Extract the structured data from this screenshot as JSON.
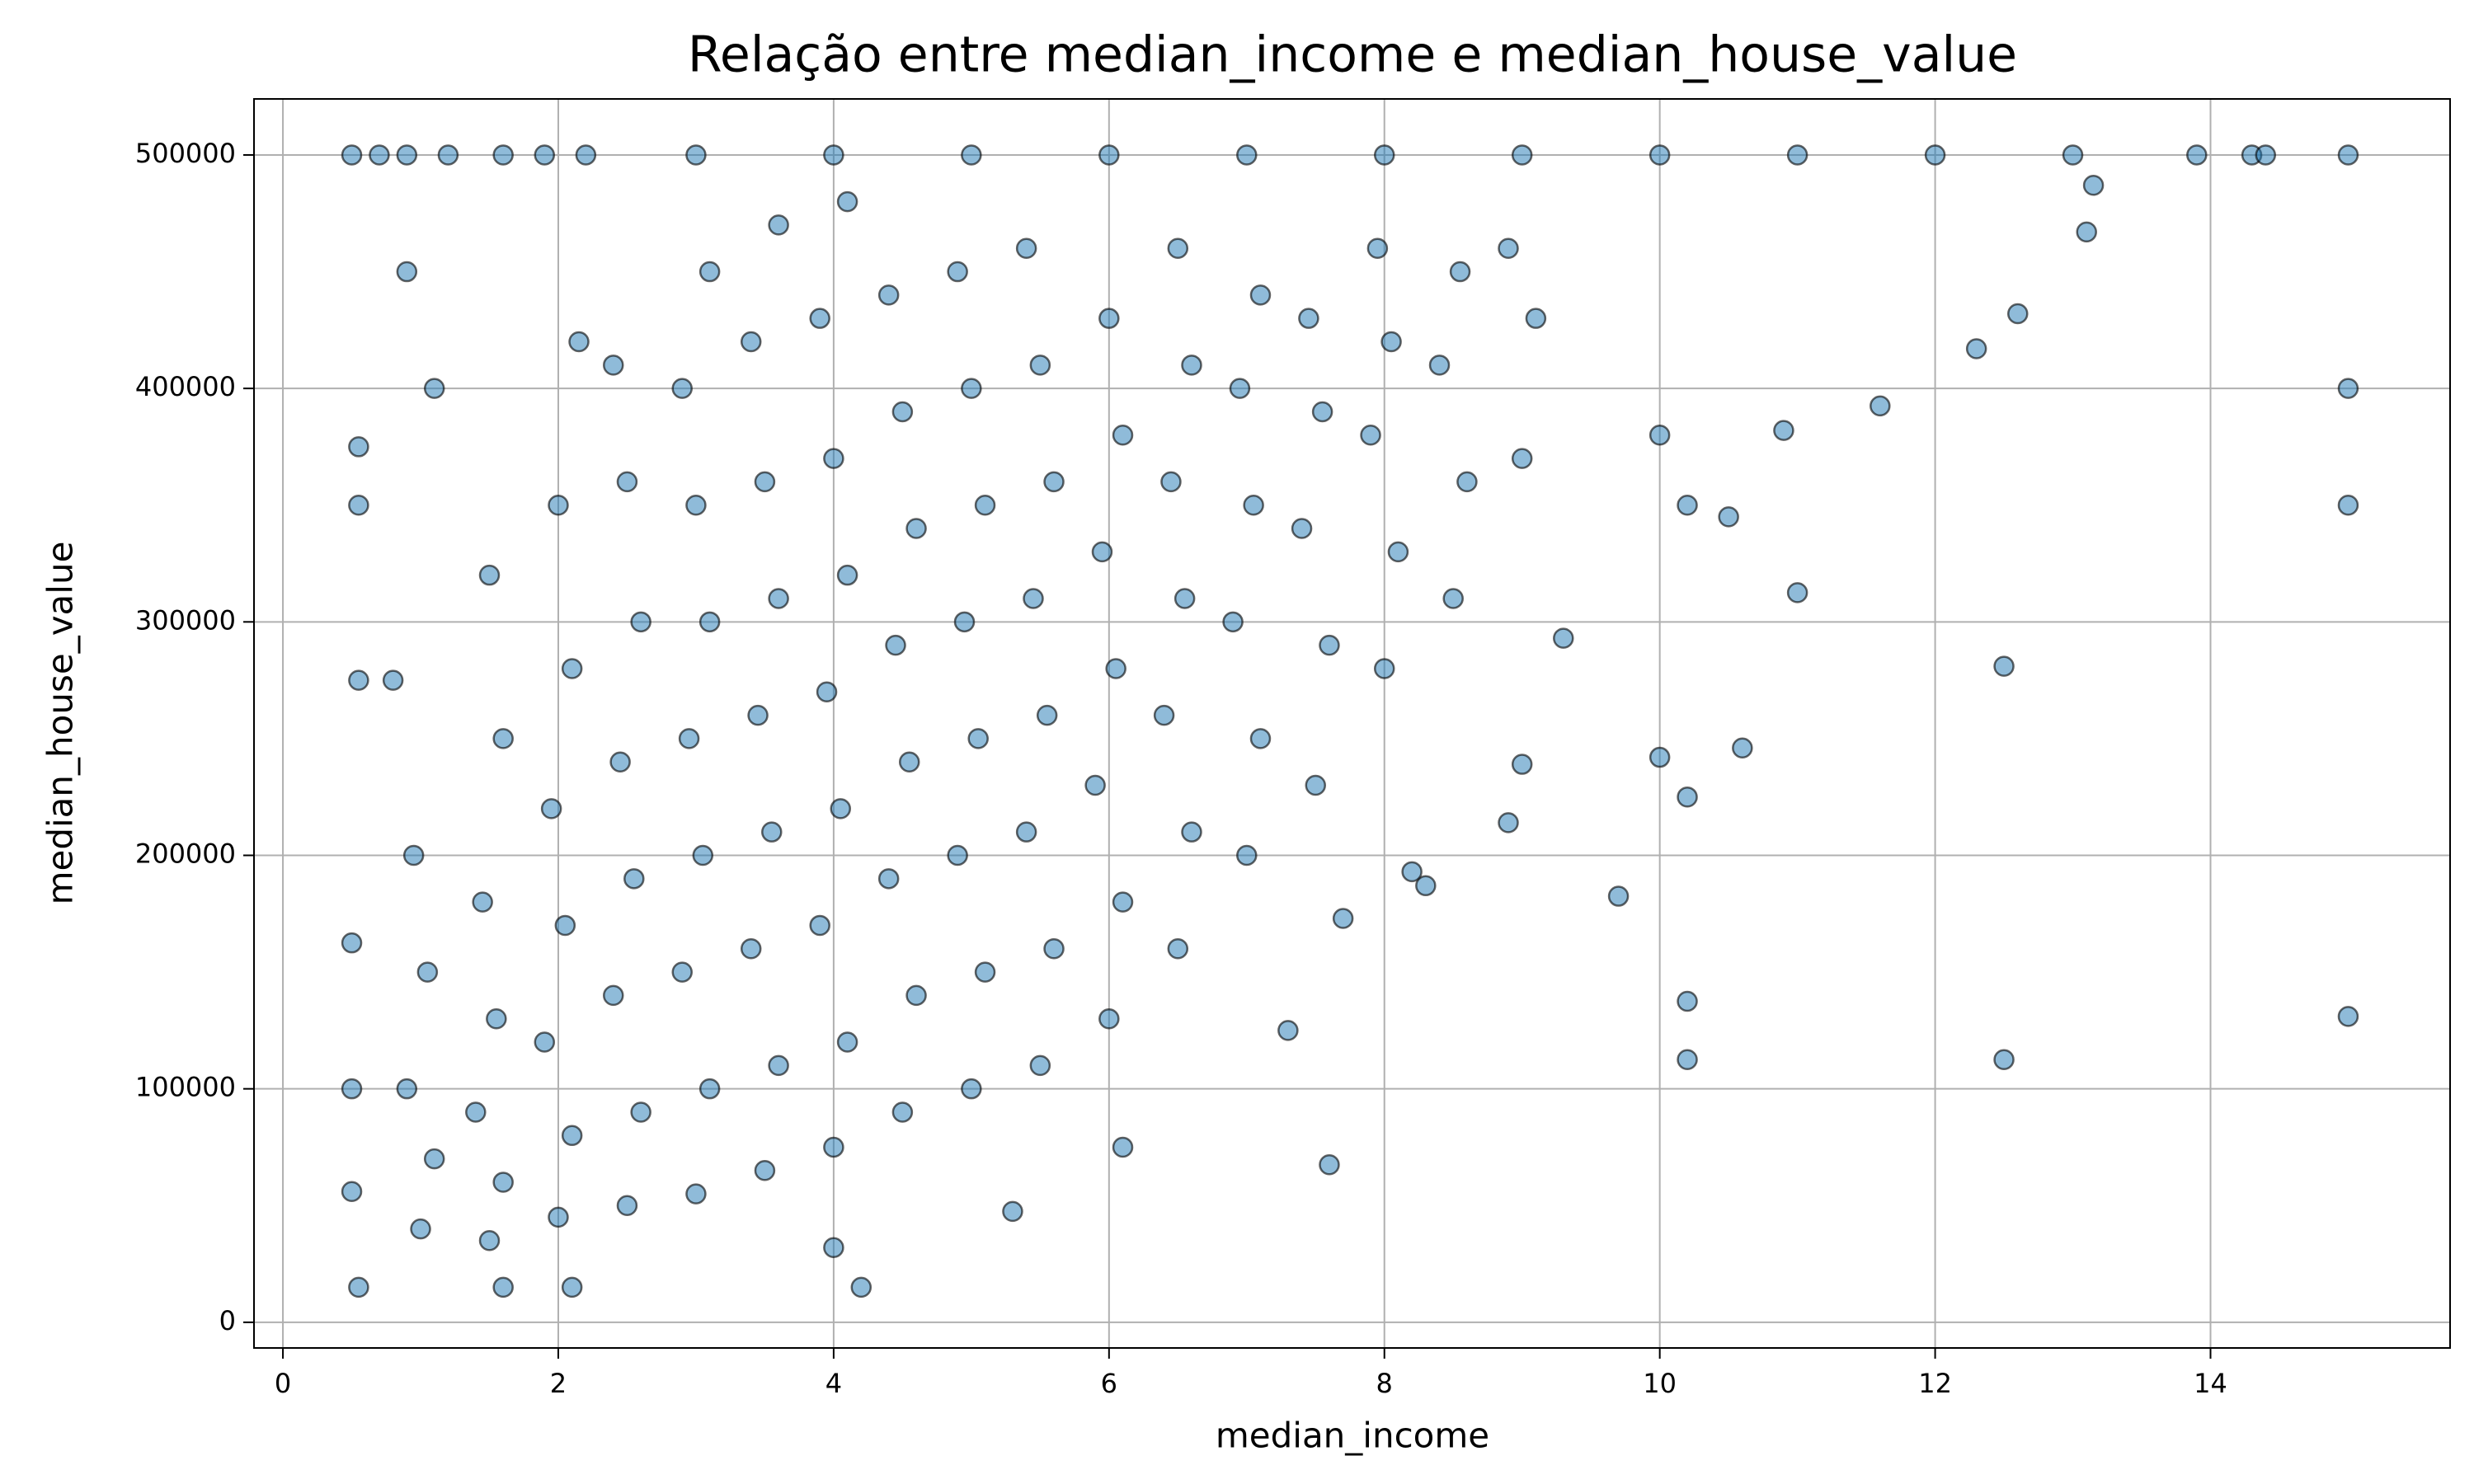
{
  "chart_data": {
    "type": "scatter",
    "title": "Relação entre median_income e median_house_value",
    "x_label": "median_income",
    "y_label": "median_house_value",
    "color": "#1f77b4",
    "grid": true,
    "xlim": [
      -0.21,
      15.74
    ],
    "ylim": [
      -11000,
      524000
    ],
    "xticks": [
      0,
      2,
      4,
      6,
      8,
      10,
      12,
      14
    ],
    "yticks": [
      0,
      100000,
      200000,
      300000,
      400000,
      500000
    ],
    "x": [
      1.0,
      1.1,
      0.9,
      1.05,
      0.95,
      1.5,
      1.6,
      1.4,
      1.55,
      1.45,
      1.6,
      1.5,
      2.0,
      2.1,
      1.9,
      2.05,
      1.95,
      2.1,
      2.0,
      2.15,
      2.5,
      2.6,
      2.4,
      2.55,
      2.45,
      2.6,
      2.5,
      2.4,
      3.0,
      3.1,
      2.9,
      3.05,
      2.95,
      3.1,
      3.0,
      2.9,
      3.1,
      3.5,
      3.6,
      3.4,
      3.55,
      3.45,
      3.6,
      3.5,
      3.4,
      3.6,
      4.0,
      4.1,
      3.9,
      4.05,
      3.95,
      4.1,
      4.0,
      3.9,
      4.1,
      4.5,
      4.6,
      4.4,
      4.55,
      4.45,
      4.6,
      4.5,
      4.4,
      5.0,
      5.1,
      4.9,
      5.05,
      4.95,
      5.1,
      5.0,
      4.9,
      5.5,
      5.6,
      5.4,
      5.55,
      5.45,
      5.6,
      5.5,
      5.4,
      6.0,
      6.1,
      5.9,
      6.05,
      5.95,
      6.1,
      6.0,
      6.5,
      6.6,
      6.4,
      6.55,
      6.45,
      6.6,
      6.5,
      7.0,
      7.1,
      6.9,
      7.05,
      6.95,
      7.1,
      7.5,
      7.6,
      7.4,
      7.55,
      7.45,
      8.0,
      8.1,
      7.9,
      8.05,
      7.95,
      8.5,
      8.6,
      8.4,
      8.55,
      9.0,
      9.1,
      8.9,
      15,
      15,
      15,
      12.5,
      12.5,
      10.2,
      10.2,
      10.2,
      9.7,
      10,
      10.6,
      11,
      11.6,
      12.3,
      12.6,
      13.1,
      13.15,
      10.9,
      10,
      10.2,
      10.5,
      9.3,
      8.9,
      9,
      8.3,
      8.2,
      7.6,
      7.3,
      7.7,
      6.1,
      5.3,
      4.2,
      1.6,
      0.55,
      2.1,
      4,
      0.9,
      0.5,
      0.55,
      0.55,
      0.55,
      1.1,
      0.8,
      0.5,
      0.5,
      0.5,
      0.7,
      0.9,
      1.2,
      1.6,
      1.9,
      2.2,
      3,
      4,
      5,
      6,
      7,
      8,
      9,
      10,
      11,
      12,
      13,
      13.9,
      14.3,
      14.4,
      15
    ],
    "values": [
      40000,
      70000,
      100000,
      150000,
      200000,
      35000,
      60000,
      90000,
      130000,
      180000,
      250000,
      320000,
      45000,
      80000,
      120000,
      170000,
      220000,
      280000,
      350000,
      420000,
      50000,
      90000,
      140000,
      190000,
      240000,
      300000,
      360000,
      410000,
      55000,
      100000,
      150000,
      200000,
      250000,
      300000,
      350000,
      400000,
      450000,
      65000,
      110000,
      160000,
      210000,
      260000,
      310000,
      360000,
      420000,
      470000,
      75000,
      120000,
      170000,
      220000,
      270000,
      320000,
      370000,
      430000,
      480000,
      90000,
      140000,
      190000,
      240000,
      290000,
      340000,
      390000,
      440000,
      100000,
      150000,
      200000,
      250000,
      300000,
      350000,
      400000,
      450000,
      110000,
      160000,
      210000,
      260000,
      310000,
      360000,
      410000,
      460000,
      130000,
      180000,
      230000,
      280000,
      330000,
      380000,
      430000,
      160000,
      210000,
      260000,
      310000,
      360000,
      410000,
      460000,
      200000,
      250000,
      300000,
      350000,
      400000,
      440000,
      230000,
      290000,
      340000,
      390000,
      430000,
      280000,
      330000,
      380000,
      420000,
      460000,
      310000,
      360000,
      410000,
      450000,
      370000,
      430000,
      460000,
      400000,
      350000,
      131000,
      112500,
      281000,
      112500,
      137500,
      225000,
      182500,
      242000,
      246000,
      312500,
      392500,
      417000,
      432000,
      467000,
      487000,
      382000,
      380000,
      350000,
      345000,
      293000,
      214000,
      239000,
      187000,
      193000,
      67500,
      125000,
      173000,
      75000,
      47500,
      15000,
      15000,
      15000,
      15000,
      32000,
      450000,
      162500,
      375000,
      350000,
      275000,
      400000,
      275000,
      100000,
      56000,
      500001,
      500001,
      500001,
      500001,
      500001,
      500001,
      500001,
      500001,
      500001,
      500001,
      500001,
      500001,
      500001,
      500001,
      500001,
      500001,
      500001,
      500001,
      500001,
      500001,
      500001,
      500001
    ]
  }
}
